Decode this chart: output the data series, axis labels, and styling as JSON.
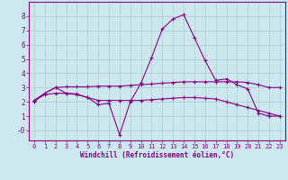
{
  "xlabel": "Windchill (Refroidissement éolien,°C)",
  "background_color": "#cce8ee",
  "grid_color": "#aacccc",
  "line_color": "#880088",
  "x": [
    0,
    1,
    2,
    3,
    4,
    5,
    6,
    7,
    8,
    9,
    10,
    11,
    12,
    13,
    14,
    15,
    16,
    17,
    18,
    19,
    20,
    21,
    22,
    23
  ],
  "line1": [
    2.0,
    2.6,
    3.0,
    2.6,
    2.5,
    2.3,
    1.8,
    1.9,
    -0.3,
    2.0,
    3.3,
    5.1,
    7.1,
    7.8,
    8.1,
    6.5,
    4.9,
    3.5,
    3.6,
    3.2,
    2.9,
    1.2,
    1.0,
    1.0
  ],
  "line2": [
    2.1,
    2.6,
    3.0,
    3.05,
    3.05,
    3.05,
    3.1,
    3.1,
    3.1,
    3.15,
    3.2,
    3.25,
    3.3,
    3.35,
    3.4,
    3.4,
    3.4,
    3.4,
    3.4,
    3.4,
    3.35,
    3.2,
    3.0,
    3.0
  ],
  "line3": [
    2.1,
    2.5,
    2.6,
    2.6,
    2.55,
    2.3,
    2.1,
    2.1,
    2.1,
    2.1,
    2.1,
    2.15,
    2.2,
    2.25,
    2.3,
    2.3,
    2.25,
    2.2,
    2.0,
    1.8,
    1.6,
    1.4,
    1.2,
    1.0
  ],
  "ylim": [
    -0.7,
    9.0
  ],
  "xlim": [
    -0.5,
    23.5
  ],
  "yticks": [
    0,
    1,
    2,
    3,
    4,
    5,
    6,
    7,
    8
  ],
  "ytick_labels": [
    "-0",
    "1",
    "2",
    "3",
    "4",
    "5",
    "6",
    "7",
    "8"
  ],
  "xticks": [
    0,
    1,
    2,
    3,
    4,
    5,
    6,
    7,
    8,
    9,
    10,
    11,
    12,
    13,
    14,
    15,
    16,
    17,
    18,
    19,
    20,
    21,
    22,
    23
  ]
}
